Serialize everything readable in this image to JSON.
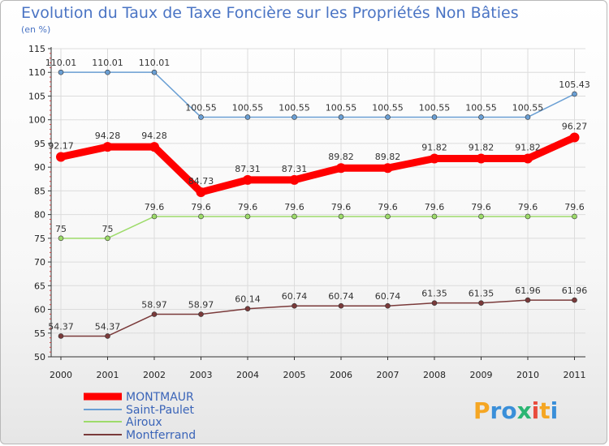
{
  "chart_data": {
    "type": "line",
    "title": "Evolution du Taux de Taxe Foncière sur les Propriétés Non Bâties",
    "subtitle": "(en %)",
    "x": [
      "2000",
      "2001",
      "2002",
      "2003",
      "2004",
      "2005",
      "2006",
      "2007",
      "2008",
      "2009",
      "2010",
      "2011"
    ],
    "ylim": [
      50,
      115
    ],
    "yticks": [
      "50",
      "55",
      "60",
      "65",
      "70",
      "75",
      "80",
      "85",
      "90",
      "95",
      "100",
      "105",
      "110",
      "115"
    ],
    "series": [
      {
        "name": "MONTMAUR",
        "color": "#ff0000",
        "values": [
          92.17,
          94.28,
          94.28,
          84.73,
          87.31,
          87.31,
          89.82,
          89.82,
          91.82,
          91.82,
          91.82,
          96.27
        ],
        "labels": [
          "92.17",
          "94.28",
          "94.28",
          "84.73",
          "87.31",
          "87.31",
          "89.82",
          "89.82",
          "91.82",
          "91.82",
          "91.82",
          "96.27"
        ]
      },
      {
        "name": "Saint-Paulet",
        "color": "#6a9fd4",
        "values": [
          110.01,
          110.01,
          110.01,
          100.55,
          100.55,
          100.55,
          100.55,
          100.55,
          100.55,
          100.55,
          100.55,
          105.43
        ],
        "labels": [
          "110.01",
          "110.01",
          "110.01",
          "100.55",
          "100.55",
          "100.55",
          "100.55",
          "100.55",
          "100.55",
          "100.55",
          "100.55",
          "105.43"
        ]
      },
      {
        "name": "Airoux",
        "color": "#9ddb6a",
        "values": [
          75,
          75,
          79.6,
          79.6,
          79.6,
          79.6,
          79.6,
          79.6,
          79.6,
          79.6,
          79.6,
          79.6
        ],
        "labels": [
          "75",
          "75",
          "79.6",
          "79.6",
          "79.6",
          "79.6",
          "79.6",
          "79.6",
          "79.6",
          "79.6",
          "79.6",
          "79.6"
        ]
      },
      {
        "name": "Montferrand",
        "color": "#7a3a3a",
        "values": [
          54.37,
          54.37,
          58.97,
          58.97,
          60.14,
          60.74,
          60.74,
          60.74,
          61.35,
          61.35,
          61.96,
          61.96
        ],
        "labels": [
          "54.37",
          "54.37",
          "58.97",
          "58.97",
          "60.14",
          "60.74",
          "60.74",
          "60.74",
          "61.35",
          "61.35",
          "61.96",
          "61.96"
        ]
      }
    ],
    "legend": [
      "MONTMAUR",
      "Saint-Paulet",
      "Airoux",
      "Montferrand"
    ],
    "grid": true
  },
  "logo": {
    "text": "Proxiti"
  }
}
